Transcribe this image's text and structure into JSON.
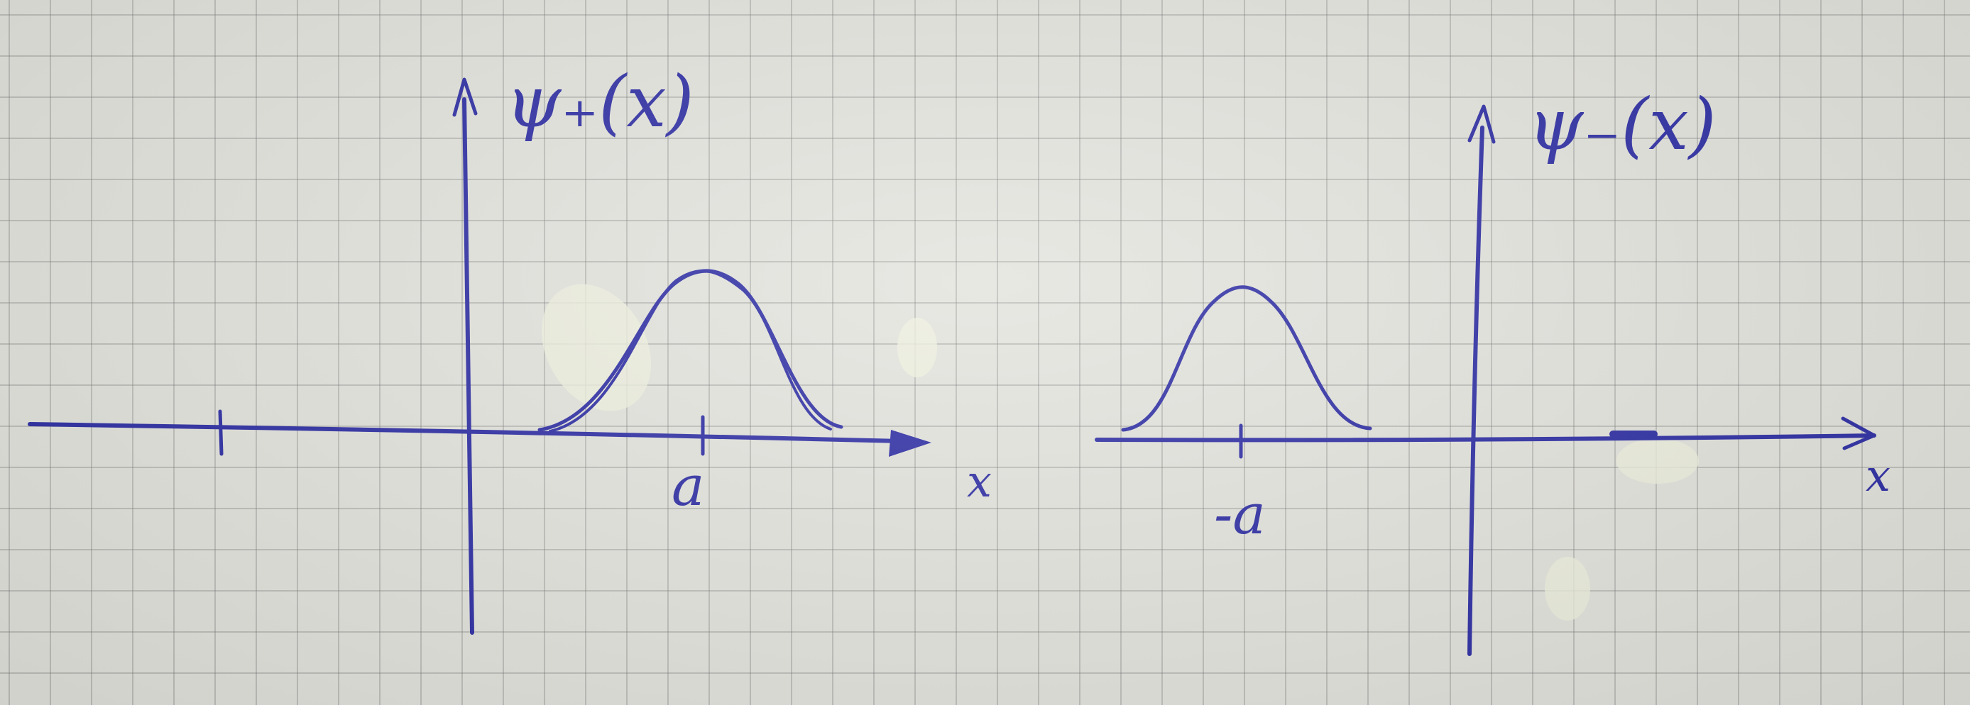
{
  "diagram": {
    "plots": [
      {
        "function_label": "ψ₊(x)",
        "axis_label": "x",
        "tick_label": "a"
      },
      {
        "function_label": "ψ₋(x)",
        "axis_label": "x",
        "tick_label": "-a"
      }
    ],
    "colors": {
      "ink": "#2b2ba3",
      "paper": "#e3e3dd",
      "grid": "#9a9a9a"
    }
  }
}
